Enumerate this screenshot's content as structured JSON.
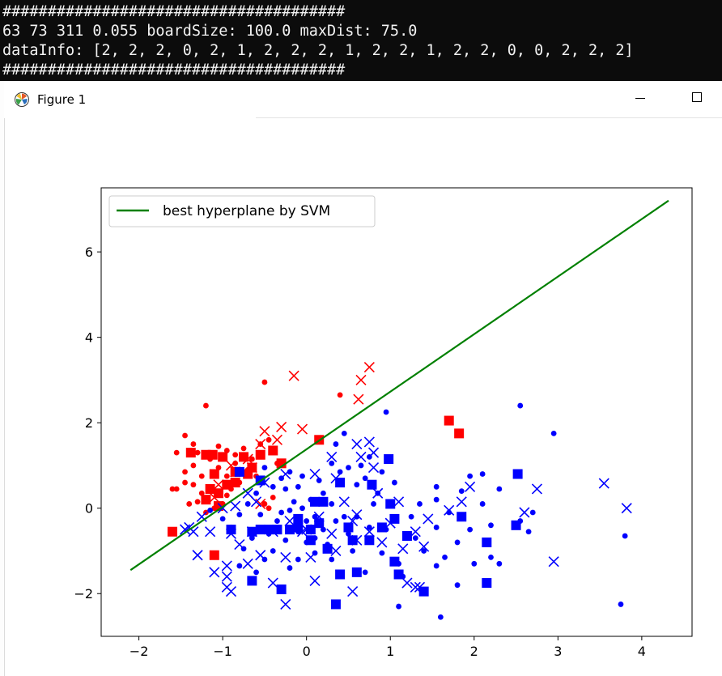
{
  "console": {
    "lines": [
      "######################################",
      "63 73 311 0.055 boardSize: 100.0 maxDist: 75.0",
      "dataInfo: [2, 2, 2, 0, 2, 1, 2, 2, 2, 1, 2, 2, 1, 2, 2, 0, 0, 2, 2, 2]",
      "######################################"
    ]
  },
  "window": {
    "title": "Figure 1",
    "icon": "matplotlib-icon",
    "controls": [
      "minimize-icon",
      "maximize-icon"
    ]
  },
  "colors": {
    "red_class": "#ff0000",
    "blue_class": "#0000ff",
    "hyperplane": "#008000",
    "console_bg": "#0c0c0c"
  },
  "chart_data": {
    "type": "scatter",
    "title": "",
    "xlabel": "",
    "ylabel": "",
    "xlim": [
      -2.45,
      4.6
    ],
    "ylim": [
      -3.0,
      7.5
    ],
    "xticks": [
      -2,
      -1,
      0,
      1,
      2,
      3,
      4
    ],
    "yticks": [
      -2,
      0,
      2,
      4,
      6
    ],
    "legend": {
      "position": "upper-left",
      "entries": [
        "best hyperplane by SVM"
      ]
    },
    "lines": [
      {
        "name": "best hyperplane by SVM",
        "color": "#008000",
        "x": [
          -2.1,
          4.32
        ],
        "y": [
          -1.45,
          7.2
        ]
      }
    ],
    "series": [
      {
        "color": "#ff0000",
        "marker": "dot",
        "points": [
          [
            -1.2,
            2.4
          ],
          [
            -0.5,
            2.95
          ],
          [
            0.4,
            2.65
          ],
          [
            -1.45,
            1.7
          ],
          [
            -1.35,
            1.5
          ],
          [
            -1.3,
            1.3
          ],
          [
            -1.55,
            1.3
          ],
          [
            -1.05,
            1.45
          ],
          [
            -0.95,
            1.35
          ],
          [
            -0.85,
            1.25
          ],
          [
            -0.75,
            1.4
          ],
          [
            -0.55,
            1.5
          ],
          [
            -0.45,
            1.6
          ],
          [
            -0.65,
            1.15
          ],
          [
            -1.15,
            1.15
          ],
          [
            -1.35,
            1.0
          ],
          [
            -1.45,
            0.85
          ],
          [
            -1.25,
            0.75
          ],
          [
            -1.05,
            0.95
          ],
          [
            -0.95,
            0.75
          ],
          [
            -0.7,
            0.9
          ],
          [
            -0.6,
            0.75
          ],
          [
            -1.35,
            0.55
          ],
          [
            -1.45,
            0.6
          ],
          [
            -1.55,
            0.45
          ],
          [
            -1.6,
            0.45
          ],
          [
            -1.25,
            0.35
          ],
          [
            -1.15,
            0.4
          ],
          [
            -0.9,
            0.45
          ],
          [
            -0.8,
            0.6
          ],
          [
            -1.3,
            0.15
          ],
          [
            -1.4,
            0.1
          ],
          [
            -1.0,
            0.1
          ],
          [
            -0.95,
            0.3
          ],
          [
            -0.5,
            0.1
          ],
          [
            -0.45,
            0.0
          ],
          [
            -0.4,
            0.25
          ],
          [
            -0.85,
            1.05
          ],
          [
            -0.35,
            1.05
          ],
          [
            -1.1,
            0.0
          ],
          [
            -1.2,
            -0.1
          ]
        ]
      },
      {
        "color": "#ff0000",
        "marker": "x",
        "points": [
          [
            -0.15,
            3.1
          ],
          [
            0.75,
            3.3
          ],
          [
            0.65,
            3.0
          ],
          [
            0.62,
            2.55
          ],
          [
            -0.5,
            1.8
          ],
          [
            -0.3,
            1.9
          ],
          [
            -0.05,
            1.85
          ],
          [
            -0.55,
            1.5
          ],
          [
            -0.35,
            1.6
          ],
          [
            -0.7,
            1.15
          ],
          [
            -0.65,
            0.95
          ],
          [
            -0.9,
            1.0
          ],
          [
            -0.85,
            0.85
          ],
          [
            -1.05,
            0.55
          ],
          [
            -1.1,
            0.25
          ],
          [
            -0.55,
            0.1
          ]
        ]
      },
      {
        "color": "#ff0000",
        "marker": "square",
        "points": [
          [
            1.7,
            2.05
          ],
          [
            1.82,
            1.75
          ],
          [
            -1.0,
            1.2
          ],
          [
            -1.12,
            1.25
          ],
          [
            -1.2,
            1.25
          ],
          [
            -1.38,
            1.3
          ],
          [
            -0.4,
            1.35
          ],
          [
            -0.75,
            1.2
          ],
          [
            -0.55,
            1.25
          ],
          [
            -1.1,
            0.8
          ],
          [
            -0.85,
            0.85
          ],
          [
            -0.7,
            0.8
          ],
          [
            -0.65,
            0.95
          ],
          [
            -0.95,
            0.55
          ],
          [
            -1.05,
            0.35
          ],
          [
            -1.15,
            0.45
          ],
          [
            -1.2,
            0.2
          ],
          [
            -0.85,
            0.6
          ],
          [
            -1.6,
            -0.55
          ],
          [
            -1.1,
            -1.1
          ],
          [
            -0.3,
            1.05
          ],
          [
            -1.05,
            0.05
          ],
          [
            0.15,
            1.6
          ]
        ]
      },
      {
        "color": "#0000ff",
        "marker": "dot",
        "points": [
          [
            0.45,
            1.75
          ],
          [
            0.95,
            2.25
          ],
          [
            2.55,
            2.4
          ],
          [
            2.95,
            1.75
          ],
          [
            0.35,
            1.5
          ],
          [
            0.75,
            1.2
          ],
          [
            0.3,
            1.05
          ],
          [
            0.5,
            0.95
          ],
          [
            0.9,
            0.85
          ],
          [
            0.7,
            0.7
          ],
          [
            0.6,
            0.55
          ],
          [
            0.85,
            0.35
          ],
          [
            1.05,
            0.6
          ],
          [
            0.8,
            0.1
          ],
          [
            1.55,
            0.5
          ],
          [
            1.95,
            0.75
          ],
          [
            2.1,
            0.8
          ],
          [
            1.85,
            0.4
          ],
          [
            2.3,
            0.45
          ],
          [
            1.55,
            0.2
          ],
          [
            1.35,
            0.1
          ],
          [
            1.25,
            -0.2
          ],
          [
            1.55,
            -0.45
          ],
          [
            1.95,
            -0.5
          ],
          [
            2.2,
            -0.4
          ],
          [
            2.55,
            -0.3
          ],
          [
            2.7,
            -0.1
          ],
          [
            2.65,
            -0.55
          ],
          [
            1.8,
            -0.8
          ],
          [
            1.4,
            -1.0
          ],
          [
            1.65,
            -1.15
          ],
          [
            2.0,
            -1.3
          ],
          [
            2.2,
            -1.15
          ],
          [
            2.3,
            -1.3
          ],
          [
            1.55,
            -1.35
          ],
          [
            1.8,
            -1.8
          ],
          [
            1.1,
            -1.3
          ],
          [
            1.15,
            -1.6
          ],
          [
            0.9,
            -1.05
          ],
          [
            0.55,
            -1.0
          ],
          [
            0.3,
            -1.2
          ],
          [
            0.1,
            -1.05
          ],
          [
            -0.1,
            -1.2
          ],
          [
            -0.4,
            -1.0
          ],
          [
            -0.8,
            -1.35
          ],
          [
            -0.6,
            -1.5
          ],
          [
            -0.2,
            -1.4
          ],
          [
            1.1,
            -2.3
          ],
          [
            1.6,
            -2.55
          ],
          [
            3.75,
            -2.25
          ],
          [
            3.8,
            -0.65
          ],
          [
            0.05,
            0.2
          ],
          [
            -0.05,
            0.0
          ],
          [
            0.2,
            0.35
          ],
          [
            0.1,
            -0.2
          ],
          [
            -0.1,
            0.5
          ],
          [
            -0.3,
            0.7
          ],
          [
            -0.25,
            0.45
          ],
          [
            -0.15,
            0.15
          ],
          [
            -0.4,
            0.5
          ],
          [
            -0.6,
            0.35
          ],
          [
            -0.7,
            0.1
          ],
          [
            -0.55,
            -0.15
          ],
          [
            -0.35,
            -0.3
          ],
          [
            -0.2,
            -0.05
          ],
          [
            0.0,
            -0.3
          ],
          [
            0.2,
            -0.5
          ],
          [
            0.35,
            -0.3
          ],
          [
            0.5,
            -0.6
          ],
          [
            0.6,
            -0.2
          ],
          [
            0.75,
            -0.45
          ],
          [
            0.95,
            -0.5
          ],
          [
            -0.8,
            -0.15
          ],
          [
            -0.9,
            -0.45
          ],
          [
            -1.0,
            -0.25
          ],
          [
            -1.15,
            -0.05
          ],
          [
            -0.65,
            -0.7
          ],
          [
            -0.45,
            -0.6
          ],
          [
            -0.25,
            -0.75
          ],
          [
            0.0,
            -0.8
          ],
          [
            0.25,
            -0.85
          ],
          [
            0.45,
            -0.2
          ],
          [
            0.15,
            0.65
          ],
          [
            0.4,
            0.85
          ],
          [
            -0.5,
            0.95
          ],
          [
            -0.2,
            0.85
          ],
          [
            -0.05,
            0.75
          ],
          [
            0.65,
            1.0
          ],
          [
            1.7,
            -0.1
          ],
          [
            2.1,
            0.1
          ],
          [
            1.3,
            -0.7
          ],
          [
            0.7,
            -1.5
          ],
          [
            -0.1,
            -0.55
          ],
          [
            -0.3,
            -0.1
          ],
          [
            0.1,
            -0.7
          ],
          [
            0.3,
            0.1
          ],
          [
            -0.5,
            -1.2
          ],
          [
            -0.75,
            -0.95
          ]
        ]
      },
      {
        "color": "#0000ff",
        "marker": "x",
        "points": [
          [
            0.6,
            1.5
          ],
          [
            0.75,
            1.55
          ],
          [
            0.3,
            1.2
          ],
          [
            0.8,
            1.3
          ],
          [
            0.65,
            1.2
          ],
          [
            0.8,
            0.95
          ],
          [
            1.95,
            0.5
          ],
          [
            2.75,
            0.45
          ],
          [
            3.55,
            0.58
          ],
          [
            3.82,
            0.0
          ],
          [
            1.85,
            0.15
          ],
          [
            1.7,
            -0.05
          ],
          [
            2.6,
            -0.1
          ],
          [
            0.35,
            0.7
          ],
          [
            0.1,
            0.8
          ],
          [
            -0.25,
            0.8
          ],
          [
            -0.5,
            0.6
          ],
          [
            -0.7,
            0.35
          ],
          [
            -0.6,
            0.15
          ],
          [
            -0.85,
            0.05
          ],
          [
            -1.0,
            0.0
          ],
          [
            -1.25,
            -0.2
          ],
          [
            -1.4,
            -0.45
          ],
          [
            -1.15,
            -0.55
          ],
          [
            -0.9,
            -0.6
          ],
          [
            -0.8,
            -0.85
          ],
          [
            -0.65,
            -0.55
          ],
          [
            -0.4,
            -0.55
          ],
          [
            -0.2,
            -0.3
          ],
          [
            0.0,
            -0.5
          ],
          [
            0.3,
            -0.6
          ],
          [
            0.55,
            -0.3
          ],
          [
            0.75,
            -0.55
          ],
          [
            1.0,
            -0.35
          ],
          [
            1.3,
            -0.55
          ],
          [
            1.4,
            -0.9
          ],
          [
            1.15,
            -0.95
          ],
          [
            0.9,
            -0.8
          ],
          [
            0.6,
            -0.75
          ],
          [
            0.35,
            -1.0
          ],
          [
            0.05,
            -1.15
          ],
          [
            -0.25,
            -1.15
          ],
          [
            -0.55,
            -1.1
          ],
          [
            -0.7,
            -1.3
          ],
          [
            -0.95,
            -1.35
          ],
          [
            -1.1,
            -1.5
          ],
          [
            -1.3,
            -1.1
          ],
          [
            -0.95,
            -1.6
          ],
          [
            -0.95,
            -1.85
          ],
          [
            -0.9,
            -1.95
          ],
          [
            -0.4,
            -1.75
          ],
          [
            -0.25,
            -2.25
          ],
          [
            0.1,
            -1.7
          ],
          [
            0.55,
            -1.95
          ],
          [
            1.2,
            -1.75
          ],
          [
            1.3,
            -1.85
          ],
          [
            2.95,
            -1.25
          ],
          [
            1.35,
            -1.85
          ],
          [
            -0.05,
            -0.55
          ],
          [
            0.15,
            -0.2
          ],
          [
            0.45,
            0.15
          ],
          [
            0.6,
            -0.15
          ],
          [
            0.85,
            0.35
          ],
          [
            1.1,
            0.15
          ],
          [
            1.45,
            -0.25
          ],
          [
            -1.35,
            -0.55
          ],
          [
            -1.45,
            -0.5
          ]
        ]
      },
      {
        "color": "#0000ff",
        "marker": "square",
        "points": [
          [
            0.98,
            1.15
          ],
          [
            2.52,
            0.8
          ],
          [
            0.4,
            0.6
          ],
          [
            0.78,
            0.55
          ],
          [
            1.0,
            0.1
          ],
          [
            0.2,
            0.15
          ],
          [
            0.1,
            0.15
          ],
          [
            -0.55,
            0.65
          ],
          [
            -0.55,
            -0.5
          ],
          [
            -0.65,
            -0.55
          ],
          [
            -0.9,
            -0.5
          ],
          [
            -0.45,
            -0.5
          ],
          [
            -0.2,
            -0.5
          ],
          [
            -0.35,
            -0.5
          ],
          [
            -0.1,
            -0.45
          ],
          [
            0.05,
            -0.5
          ],
          [
            -0.1,
            -0.25
          ],
          [
            0.15,
            -0.35
          ],
          [
            0.5,
            -0.45
          ],
          [
            0.55,
            -0.75
          ],
          [
            0.9,
            -0.45
          ],
          [
            1.05,
            -0.25
          ],
          [
            1.2,
            -0.65
          ],
          [
            1.85,
            -0.2
          ],
          [
            2.15,
            -0.8
          ],
          [
            2.5,
            -0.4
          ],
          [
            1.05,
            -1.25
          ],
          [
            0.6,
            -1.5
          ],
          [
            1.1,
            -1.55
          ],
          [
            0.4,
            -1.55
          ],
          [
            -0.65,
            -1.7
          ],
          [
            -0.3,
            -1.9
          ],
          [
            0.35,
            -2.25
          ],
          [
            1.4,
            -1.95
          ],
          [
            2.15,
            -1.75
          ],
          [
            0.05,
            -0.75
          ],
          [
            0.25,
            -0.95
          ],
          [
            0.75,
            -0.75
          ],
          [
            -0.8,
            0.85
          ]
        ]
      }
    ]
  }
}
